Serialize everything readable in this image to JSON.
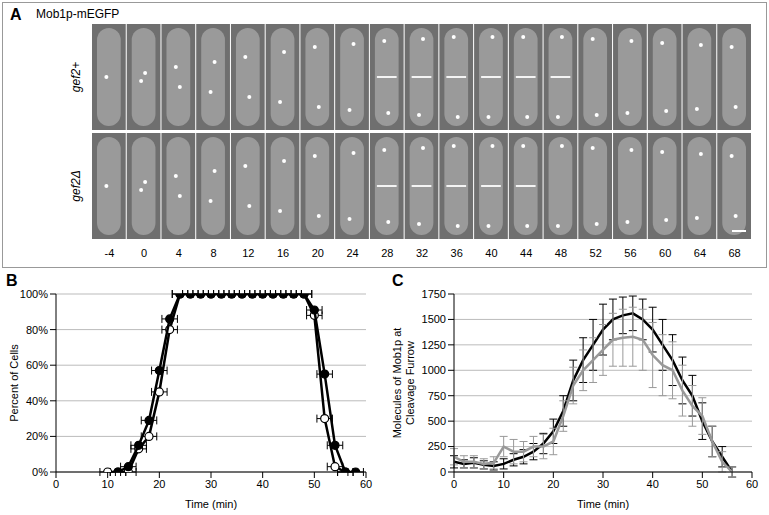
{
  "image_panel": {
    "panel": "A",
    "title": "Mob1p-mEGFP",
    "rows": [
      "gef2+",
      "gef2Δ"
    ],
    "times": [
      -4,
      0,
      4,
      8,
      12,
      16,
      20,
      24,
      28,
      32,
      36,
      40,
      44,
      48,
      52,
      56,
      60,
      64,
      68
    ]
  },
  "chart_data": [
    {
      "panel": "B",
      "type": "scatter",
      "xlabel": "Time (min)",
      "ylabel": "Percent of Cells",
      "x": [
        10,
        12,
        14,
        16,
        18,
        20,
        22,
        24,
        26,
        28,
        30,
        32,
        34,
        36,
        38,
        40,
        42,
        44,
        46,
        48,
        50,
        52,
        54,
        56,
        58,
        60
      ],
      "series": [
        {
          "color": "#000000",
          "marker": "open-circle",
          "line_style": "solid",
          "values": [
            0,
            0,
            0,
            13,
            20,
            45,
            80,
            100,
            100,
            100,
            100,
            100,
            100,
            100,
            100,
            100,
            100,
            100,
            100,
            100,
            88,
            30,
            3,
            0,
            null,
            null
          ],
          "x_errors": [
            1.5,
            1.5,
            1.5,
            1.5,
            1.5,
            1.5,
            1.5,
            1.5,
            1.5,
            1.5,
            1.5,
            1.5,
            1.5,
            1.5,
            1.5,
            1.5,
            1.5,
            1.5,
            1.5,
            1.5,
            1.5,
            1.5,
            1.5,
            1.5,
            null,
            null
          ]
        },
        {
          "color": "#000000",
          "marker": "circle",
          "line_style": "solid",
          "values": [
            null,
            0,
            3,
            15,
            29,
            57,
            86,
            100,
            100,
            100,
            100,
            100,
            100,
            100,
            100,
            100,
            100,
            100,
            100,
            100,
            91,
            55,
            15,
            0,
            0,
            null
          ],
          "x_errors": [
            null,
            1.5,
            1.5,
            1.5,
            1.5,
            1.5,
            1.5,
            1.5,
            1.5,
            1.5,
            1.5,
            1.5,
            1.5,
            1.5,
            1.5,
            1.5,
            1.5,
            1.5,
            1.5,
            1.5,
            1.5,
            1.5,
            1.5,
            1.5,
            1.5,
            null
          ]
        }
      ],
      "xlim": [
        0,
        60
      ],
      "xticks": [
        0,
        10,
        20,
        30,
        40,
        50,
        60
      ],
      "ylim": [
        0,
        100
      ],
      "yticks": [
        {
          "value": 0,
          "label": "0%"
        },
        {
          "value": 20,
          "label": "20%"
        },
        {
          "value": 40,
          "label": "40%"
        },
        {
          "value": 60,
          "label": "60%"
        },
        {
          "value": 80,
          "label": "80%"
        },
        {
          "value": 100,
          "label": "100%"
        }
      ],
      "grid": true
    },
    {
      "panel": "C",
      "type": "line",
      "xlabel": "Time (min)",
      "ylabel": "Molecules of Mob1p at Cleavage Furrow",
      "x": [
        0,
        2,
        4,
        6,
        8,
        10,
        12,
        14,
        16,
        18,
        20,
        22,
        24,
        26,
        28,
        30,
        32,
        34,
        36,
        38,
        40,
        42,
        44,
        46,
        48,
        50,
        52,
        54,
        56
      ],
      "series": [
        {
          "color": "#000000",
          "line_style": "solid",
          "values": [
            100,
            80,
            90,
            70,
            60,
            80,
            120,
            150,
            200,
            280,
            400,
            600,
            900,
            1100,
            1250,
            1400,
            1500,
            1540,
            1560,
            1500,
            1400,
            1250,
            1100,
            900,
            750,
            500,
            300,
            150,
            0
          ],
          "errors": [
            60,
            40,
            50,
            40,
            40,
            50,
            60,
            70,
            80,
            100,
            120,
            150,
            200,
            220,
            250,
            250,
            200,
            180,
            170,
            200,
            220,
            250,
            250,
            230,
            200,
            180,
            150,
            100,
            50
          ]
        },
        {
          "color": "#999999",
          "line_style": "solid",
          "values": [
            150,
            100,
            100,
            80,
            90,
            250,
            200,
            200,
            250,
            250,
            300,
            550,
            850,
            1000,
            1100,
            1200,
            1300,
            1320,
            1330,
            1300,
            1150,
            1050,
            1000,
            800,
            650,
            550,
            300,
            100,
            0
          ],
          "errors": [
            80,
            60,
            60,
            50,
            60,
            100,
            120,
            100,
            100,
            120,
            130,
            150,
            180,
            200,
            220,
            250,
            260,
            280,
            290,
            300,
            320,
            300,
            280,
            250,
            200,
            180,
            150,
            100,
            50
          ]
        }
      ],
      "xlim": [
        0,
        60
      ],
      "xticks": [
        0,
        10,
        20,
        30,
        40,
        50,
        60
      ],
      "ylim": [
        0,
        1750
      ],
      "yticks": [
        0,
        250,
        500,
        750,
        1000,
        1250,
        1500,
        1750
      ],
      "grid": true
    }
  ]
}
